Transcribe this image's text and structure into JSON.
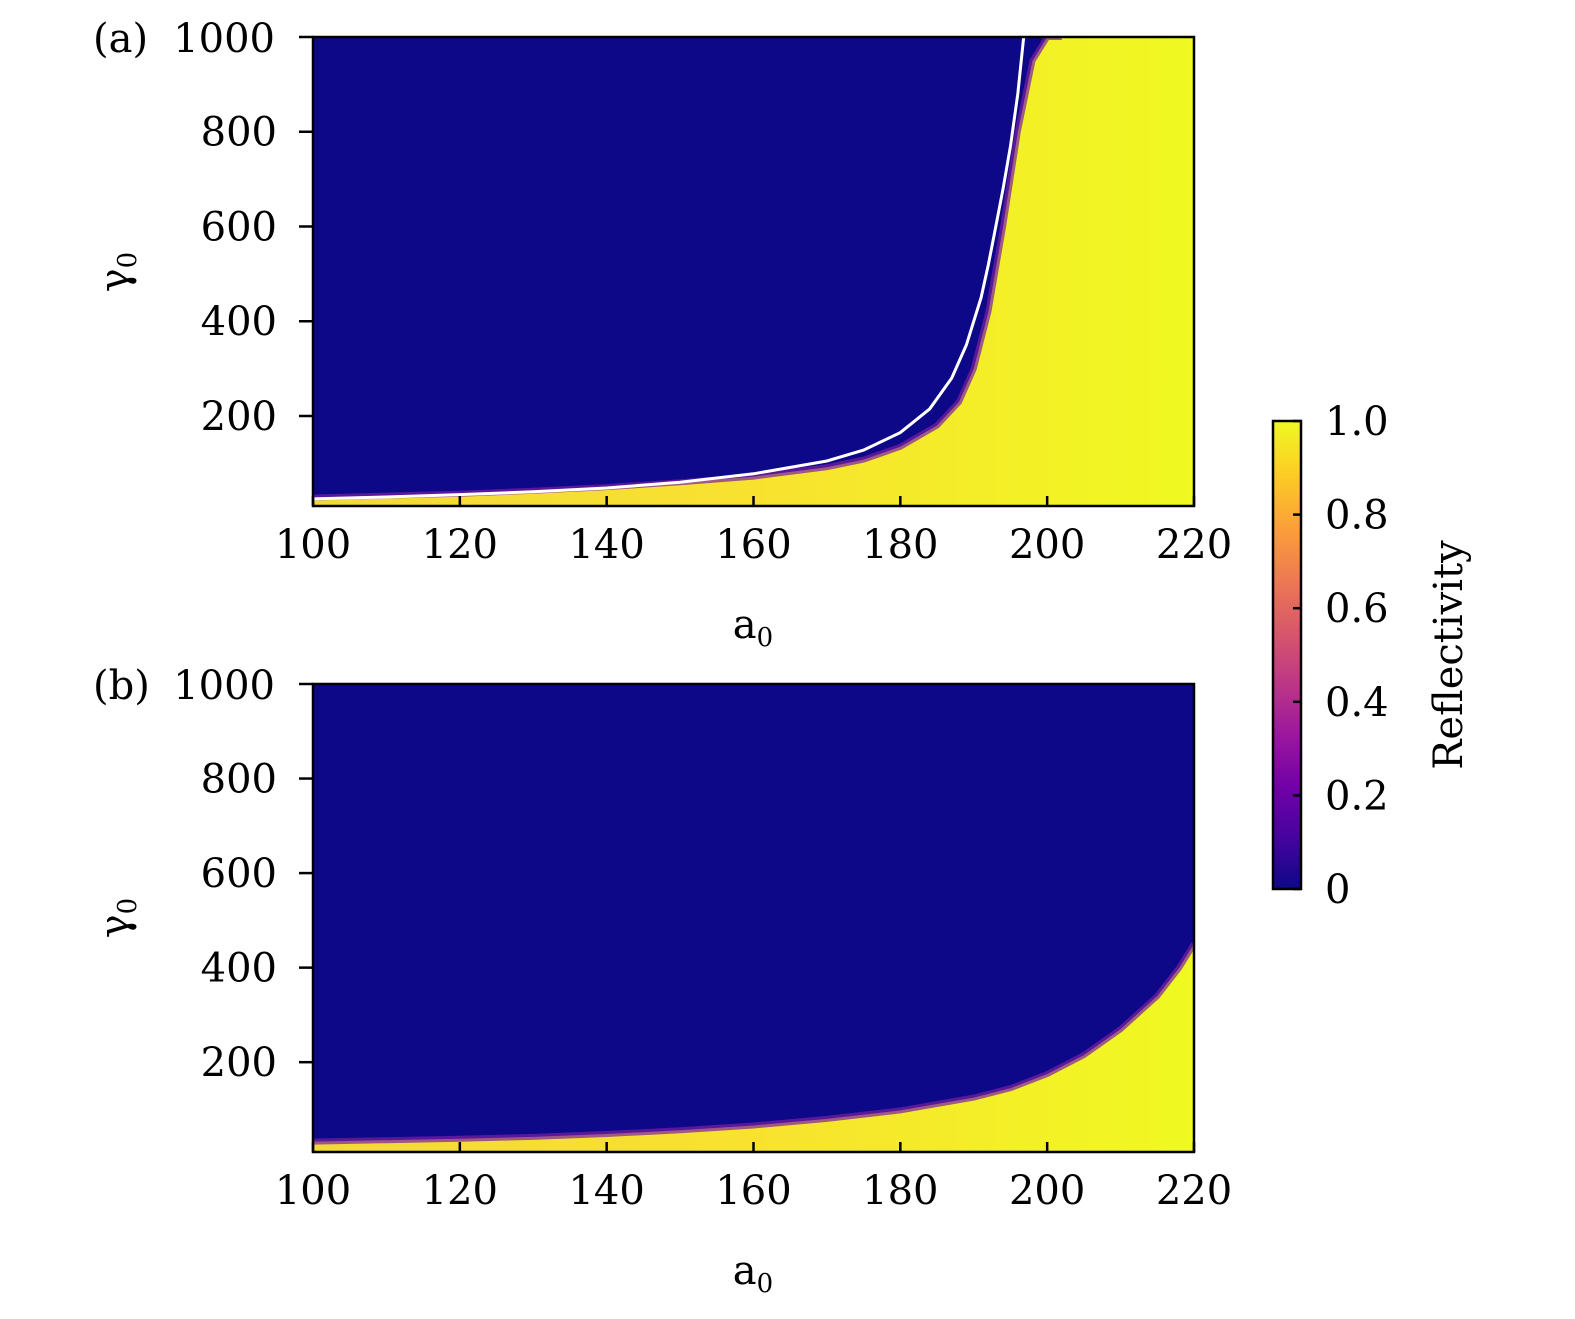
{
  "chart_data": [
    {
      "type": "heatmap",
      "panel_label": "(a)",
      "title": "",
      "xlabel": "a",
      "xlabel_sub": "0",
      "ylabel": "γ",
      "ylabel_sub": "0",
      "xlim": [
        100,
        220
      ],
      "ylim": [
        10,
        1000
      ],
      "x_ticks": [
        "100",
        "120",
        "140",
        "160",
        "180",
        "200",
        "220"
      ],
      "y_ticks": [
        "200",
        "400",
        "600",
        "800",
        "1000"
      ],
      "x_tick_values": [
        100,
        120,
        140,
        160,
        180,
        200,
        220
      ],
      "y_tick_values": [
        200,
        400,
        600,
        800,
        1000
      ],
      "low_region_color": "#0d0887",
      "high_region_color": "#f0f921",
      "transition_boundary": {
        "a0": [
          100,
          110,
          120,
          130,
          140,
          150,
          160,
          170,
          175,
          180,
          185,
          188,
          190,
          192,
          194,
          196,
          198,
          200,
          202
        ],
        "gamma0": [
          28,
          32,
          36,
          42,
          50,
          60,
          72,
          92,
          108,
          135,
          180,
          230,
          300,
          420,
          600,
          800,
          950,
          1000,
          1000
        ]
      },
      "threshold_curve": {
        "color": "#ffffff",
        "a0": [
          100,
          110,
          120,
          130,
          140,
          150,
          160,
          170,
          175,
          180,
          184,
          187,
          189,
          191,
          192,
          193,
          194,
          195,
          196,
          196.8
        ],
        "gamma0": [
          25,
          29,
          34,
          40,
          48,
          60,
          78,
          105,
          128,
          165,
          215,
          280,
          350,
          450,
          520,
          600,
          680,
          770,
          880,
          1000
        ]
      }
    },
    {
      "type": "heatmap",
      "panel_label": "(b)",
      "title": "",
      "xlabel": "a",
      "xlabel_sub": "0",
      "ylabel": "γ",
      "ylabel_sub": "0",
      "xlim": [
        100,
        220
      ],
      "ylim": [
        10,
        1000
      ],
      "x_ticks": [
        "100",
        "120",
        "140",
        "160",
        "180",
        "200",
        "220"
      ],
      "y_ticks": [
        "200",
        "400",
        "600",
        "800",
        "1000"
      ],
      "x_tick_values": [
        100,
        120,
        140,
        160,
        180,
        200,
        220
      ],
      "y_tick_values": [
        200,
        400,
        600,
        800,
        1000
      ],
      "low_region_color": "#0d0887",
      "high_region_color": "#f0f921",
      "transition_boundary": {
        "a0": [
          100,
          110,
          120,
          130,
          140,
          150,
          160,
          170,
          180,
          190,
          195,
          200,
          205,
          210,
          215,
          218,
          220
        ],
        "gamma0": [
          32,
          35,
          38,
          42,
          48,
          56,
          66,
          80,
          98,
          125,
          145,
          175,
          215,
          270,
          340,
          400,
          450
        ]
      }
    }
  ],
  "colorbar": {
    "label": "Reflectivity",
    "ticks": [
      "0",
      "0.2",
      "0.4",
      "0.6",
      "0.8",
      "1.0"
    ],
    "tick_values": [
      0,
      0.2,
      0.4,
      0.6,
      0.8,
      1.0
    ],
    "range": [
      0,
      1
    ],
    "colors": [
      "#0d0887",
      "#46039f",
      "#7201a8",
      "#9c179e",
      "#bd3786",
      "#d8576b",
      "#ed7953",
      "#fb9f3a",
      "#fdca26",
      "#f0f921"
    ]
  }
}
